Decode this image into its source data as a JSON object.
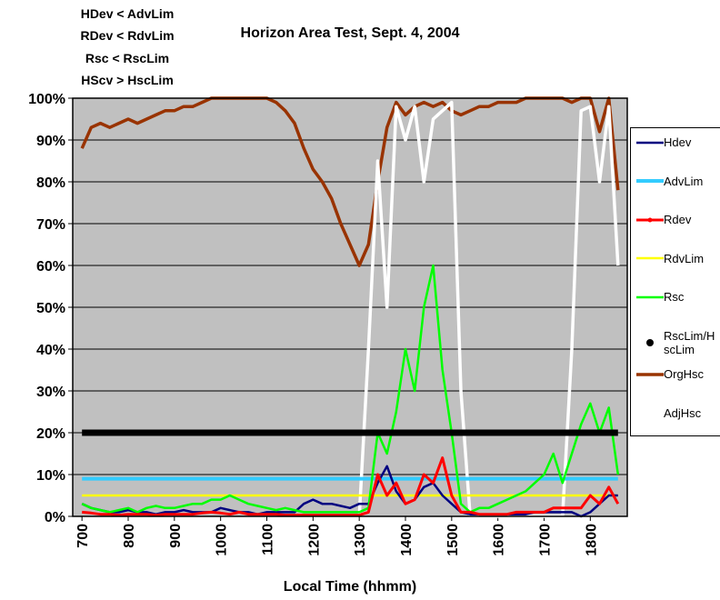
{
  "chart_data": {
    "type": "line",
    "title": "Horizon Area Test, Sept. 4, 2004",
    "annotations": [
      "HDev < AdvLim",
      "RDev < RdvLim",
      "Rsc < RscLim",
      "HScv > HscLim"
    ],
    "xlabel": "Local Time (hhmm)",
    "x": [
      700,
      720,
      740,
      760,
      780,
      800,
      820,
      840,
      860,
      880,
      900,
      920,
      940,
      960,
      980,
      1000,
      1020,
      1040,
      1060,
      1080,
      1100,
      1120,
      1140,
      1160,
      1180,
      1200,
      1220,
      1240,
      1260,
      1280,
      1300,
      1320,
      1340,
      1360,
      1380,
      1400,
      1420,
      1440,
      1460,
      1480,
      1500,
      1520,
      1540,
      1560,
      1580,
      1600,
      1620,
      1640,
      1660,
      1680,
      1700,
      1720,
      1740,
      1760,
      1780,
      1800,
      1820,
      1840,
      1860
    ],
    "xlim": [
      680,
      1880
    ],
    "xticks": [
      700,
      800,
      900,
      1000,
      1100,
      1200,
      1300,
      1400,
      1500,
      1600,
      1700,
      1800
    ],
    "ylim": [
      0,
      100
    ],
    "yticks": [
      {
        "value": 0,
        "label": "0%"
      },
      {
        "value": 10,
        "label": "10%"
      },
      {
        "value": 20,
        "label": "20%"
      },
      {
        "value": 30,
        "label": "30%"
      },
      {
        "value": 40,
        "label": "40%"
      },
      {
        "value": 50,
        "label": "50%"
      },
      {
        "value": 60,
        "label": "60%"
      },
      {
        "value": 70,
        "label": "70%"
      },
      {
        "value": 80,
        "label": "80%"
      },
      {
        "value": 90,
        "label": "90%"
      },
      {
        "value": 100,
        "label": "100%"
      }
    ],
    "grid": true,
    "legend": "right",
    "series": [
      {
        "name": "Hdev",
        "color": "#000080",
        "values": [
          3,
          2,
          1.5,
          1,
          1,
          1.5,
          1,
          1,
          0.5,
          1,
          1,
          1.5,
          1,
          1,
          1,
          2,
          1.5,
          1,
          1,
          0.5,
          1,
          1,
          1,
          1,
          3,
          4,
          3,
          3,
          2.5,
          2,
          3,
          3,
          8,
          12,
          6,
          3,
          4,
          7,
          8,
          5,
          3,
          1,
          0.5,
          0.5,
          0.5,
          0.5,
          0.5,
          0.5,
          0.5,
          1,
          1,
          1,
          1,
          1,
          0,
          1,
          3,
          5,
          5
        ]
      },
      {
        "name": "AdvLim",
        "color": "#33ccff",
        "values": [
          9,
          9,
          9,
          9,
          9,
          9,
          9,
          9,
          9,
          9,
          9,
          9,
          9,
          9,
          9,
          9,
          9,
          9,
          9,
          9,
          9,
          9,
          9,
          9,
          9,
          9,
          9,
          9,
          9,
          9,
          9,
          9,
          9,
          9,
          9,
          9,
          9,
          9,
          9,
          9,
          9,
          9,
          9,
          9,
          9,
          9,
          9,
          9,
          9,
          9,
          9,
          9,
          9,
          9,
          9,
          9,
          9,
          9,
          9
        ]
      },
      {
        "name": "Rdev",
        "color": "#ff0000",
        "values": [
          1,
          0.8,
          0.5,
          0.5,
          0.3,
          0.5,
          0.5,
          0.5,
          0.3,
          0.5,
          0.5,
          0.5,
          0.5,
          0.8,
          1,
          0.8,
          0.5,
          1,
          0.5,
          0.5,
          0.5,
          0.5,
          0.3,
          0.3,
          0.3,
          0.3,
          0.3,
          0.3,
          0.3,
          0.3,
          0.3,
          1,
          10,
          5,
          8,
          3,
          4,
          10,
          8,
          14,
          5,
          1,
          1,
          0.5,
          0.5,
          0.5,
          0.5,
          1,
          1,
          1,
          1,
          2,
          2,
          2,
          2,
          5,
          3,
          7,
          3
        ]
      },
      {
        "name": "RdvLim",
        "color": "#ffff00",
        "values": [
          5,
          5,
          5,
          5,
          5,
          5,
          5,
          5,
          5,
          5,
          5,
          5,
          5,
          5,
          5,
          5,
          5,
          5,
          5,
          5,
          5,
          5,
          5,
          5,
          5,
          5,
          5,
          5,
          5,
          5,
          5,
          5,
          5,
          5,
          5,
          5,
          5,
          5,
          5,
          5,
          5,
          5,
          5,
          5,
          5,
          5,
          5,
          5,
          5,
          5,
          5,
          5,
          5,
          5,
          5,
          5,
          5,
          5,
          5
        ]
      },
      {
        "name": "Rsc",
        "color": "#00ff00",
        "values": [
          3,
          2,
          1.5,
          1,
          1.5,
          2,
          1,
          2,
          2.5,
          2,
          2,
          2.5,
          3,
          3,
          4,
          4,
          5,
          4,
          3,
          2.5,
          2,
          1.5,
          2,
          1.5,
          1,
          1,
          1,
          1,
          1,
          1,
          1,
          2,
          20,
          15,
          25,
          40,
          30,
          50,
          60,
          35,
          20,
          3,
          1,
          2,
          2,
          3,
          4,
          5,
          6,
          8,
          10,
          15,
          8,
          15,
          22,
          27,
          20,
          26,
          10
        ]
      },
      {
        "name": "RscLim/HscLim",
        "color": "#000000",
        "values": [
          20,
          20,
          20,
          20,
          20,
          20,
          20,
          20,
          20,
          20,
          20,
          20,
          20,
          20,
          20,
          20,
          20,
          20,
          20,
          20,
          20,
          20,
          20,
          20,
          20,
          20,
          20,
          20,
          20,
          20,
          20,
          20,
          20,
          20,
          20,
          20,
          20,
          20,
          20,
          20,
          20,
          20,
          20,
          20,
          20,
          20,
          20,
          20,
          20,
          20,
          20,
          20,
          20,
          20,
          20,
          20,
          20,
          20,
          20
        ]
      },
      {
        "name": "OrgHsc",
        "color": "#993300",
        "values": [
          88,
          93,
          94,
          93,
          94,
          95,
          94,
          95,
          96,
          97,
          97,
          98,
          98,
          99,
          100,
          100,
          100,
          100,
          100,
          100,
          100,
          99,
          97,
          94,
          88,
          83,
          80,
          76,
          70,
          65,
          60,
          65,
          80,
          93,
          99,
          96,
          98,
          99,
          98,
          99,
          97,
          96,
          97,
          98,
          98,
          99,
          99,
          99,
          100,
          100,
          100,
          100,
          100,
          99,
          100,
          100,
          92,
          100,
          78
        ]
      },
      {
        "name": "AdjHsc",
        "color": "#ffffff",
        "values": [
          null,
          null,
          null,
          null,
          null,
          null,
          null,
          null,
          null,
          null,
          null,
          null,
          null,
          null,
          null,
          null,
          null,
          null,
          null,
          null,
          null,
          null,
          null,
          null,
          null,
          null,
          null,
          null,
          null,
          null,
          0,
          40,
          85,
          50,
          98,
          90,
          98,
          80,
          95,
          97,
          99,
          30,
          0,
          0,
          0,
          0,
          0,
          0,
          0,
          0,
          0,
          0,
          0,
          40,
          97,
          98,
          80,
          98,
          60
        ]
      }
    ]
  }
}
